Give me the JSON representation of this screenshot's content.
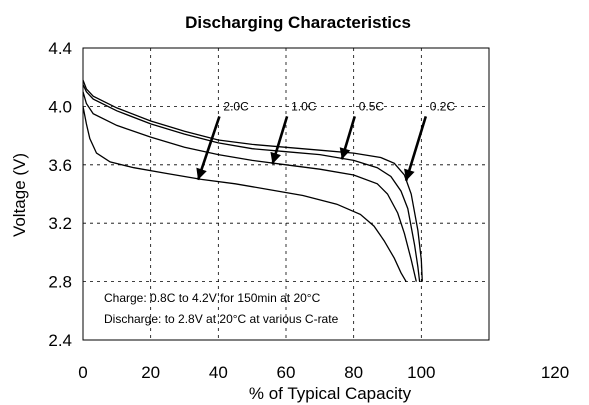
{
  "chart_data": {
    "type": "line",
    "title": "Discharging Characteristics",
    "xlabel": "% of Typical Capacity",
    "ylabel": "Voltage (V)",
    "xlim": [
      0,
      120
    ],
    "ylim": [
      2.4,
      4.4
    ],
    "x_ticks": [
      "0",
      "20",
      "40",
      "60",
      "80",
      "100",
      "120"
    ],
    "y_ticks": [
      "2.4",
      "2.8",
      "3.2",
      "3.6",
      "4.0",
      "4.4"
    ],
    "grid": true,
    "series": [
      {
        "name": "0.2C",
        "x": [
          0,
          1,
          3,
          10,
          20,
          30,
          40,
          50,
          60,
          70,
          80,
          88,
          92,
          95,
          97,
          99,
          100,
          100.3
        ],
        "y": [
          4.18,
          4.12,
          4.07,
          3.99,
          3.9,
          3.83,
          3.77,
          3.74,
          3.72,
          3.7,
          3.68,
          3.65,
          3.61,
          3.53,
          3.4,
          3.15,
          2.95,
          2.8
        ]
      },
      {
        "name": "0.5C",
        "x": [
          0,
          1,
          3,
          10,
          20,
          30,
          40,
          50,
          60,
          70,
          80,
          87,
          91,
          94,
          96,
          98,
          99,
          99.5
        ],
        "y": [
          4.15,
          4.1,
          4.05,
          3.97,
          3.88,
          3.81,
          3.75,
          3.71,
          3.69,
          3.67,
          3.63,
          3.58,
          3.52,
          3.42,
          3.3,
          3.05,
          2.9,
          2.8
        ]
      },
      {
        "name": "1.0C",
        "x": [
          0,
          1,
          3,
          10,
          20,
          30,
          40,
          50,
          60,
          70,
          80,
          87,
          90,
          93,
          95,
          97,
          98.5
        ],
        "y": [
          4.1,
          4.02,
          3.95,
          3.87,
          3.79,
          3.72,
          3.67,
          3.63,
          3.6,
          3.57,
          3.53,
          3.47,
          3.4,
          3.27,
          3.13,
          2.95,
          2.8
        ]
      },
      {
        "name": "2.0C",
        "x": [
          0,
          1,
          2,
          4,
          8,
          15,
          25,
          35,
          45,
          55,
          65,
          75,
          82,
          86,
          89,
          92,
          94,
          95.5
        ],
        "y": [
          4.0,
          3.88,
          3.78,
          3.68,
          3.62,
          3.58,
          3.54,
          3.5,
          3.47,
          3.43,
          3.39,
          3.33,
          3.26,
          3.18,
          3.08,
          2.96,
          2.86,
          2.8
        ]
      }
    ],
    "annotations": [
      "Charge: 0.8C to 4.2V for 150min at 20°C",
      "Discharge: to 2.8V at 20°C at various C-rate"
    ]
  }
}
